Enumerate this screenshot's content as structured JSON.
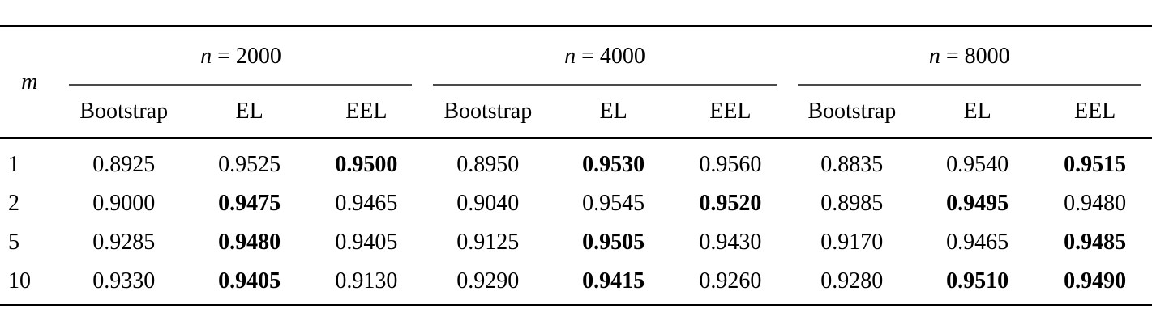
{
  "table": {
    "corner_label": "m",
    "groups": [
      {
        "var": "n",
        "eq": "= 2000",
        "sub_columns": [
          "Bootstrap",
          "EL",
          "EEL"
        ]
      },
      {
        "var": "n",
        "eq": "= 4000",
        "sub_columns": [
          "Bootstrap",
          "EL",
          "EEL"
        ]
      },
      {
        "var": "n",
        "eq": "= 8000",
        "sub_columns": [
          "Bootstrap",
          "EL",
          "EEL"
        ]
      }
    ],
    "rows": [
      {
        "m": "1",
        "cells": [
          {
            "value": "0.8925",
            "bold": false
          },
          {
            "value": "0.9525",
            "bold": false
          },
          {
            "value": "0.9500",
            "bold": true
          },
          {
            "value": "0.8950",
            "bold": false
          },
          {
            "value": "0.9530",
            "bold": true
          },
          {
            "value": "0.9560",
            "bold": false
          },
          {
            "value": "0.8835",
            "bold": false
          },
          {
            "value": "0.9540",
            "bold": false
          },
          {
            "value": "0.9515",
            "bold": true
          }
        ]
      },
      {
        "m": "2",
        "cells": [
          {
            "value": "0.9000",
            "bold": false
          },
          {
            "value": "0.9475",
            "bold": true
          },
          {
            "value": "0.9465",
            "bold": false
          },
          {
            "value": "0.9040",
            "bold": false
          },
          {
            "value": "0.9545",
            "bold": false
          },
          {
            "value": "0.9520",
            "bold": true
          },
          {
            "value": "0.8985",
            "bold": false
          },
          {
            "value": "0.9495",
            "bold": true
          },
          {
            "value": "0.9480",
            "bold": false
          }
        ]
      },
      {
        "m": "5",
        "cells": [
          {
            "value": "0.9285",
            "bold": false
          },
          {
            "value": "0.9480",
            "bold": true
          },
          {
            "value": "0.9405",
            "bold": false
          },
          {
            "value": "0.9125",
            "bold": false
          },
          {
            "value": "0.9505",
            "bold": true
          },
          {
            "value": "0.9430",
            "bold": false
          },
          {
            "value": "0.9170",
            "bold": false
          },
          {
            "value": "0.9465",
            "bold": false
          },
          {
            "value": "0.9485",
            "bold": true
          }
        ]
      },
      {
        "m": "10",
        "cells": [
          {
            "value": "0.9330",
            "bold": false
          },
          {
            "value": "0.9405",
            "bold": true
          },
          {
            "value": "0.9130",
            "bold": false
          },
          {
            "value": "0.9290",
            "bold": false
          },
          {
            "value": "0.9415",
            "bold": true
          },
          {
            "value": "0.9260",
            "bold": false
          },
          {
            "value": "0.9280",
            "bold": false
          },
          {
            "value": "0.9510",
            "bold": true
          },
          {
            "value": "0.9490",
            "bold": true
          }
        ]
      }
    ],
    "colors": {
      "text": "#000000",
      "rule": "#000000",
      "cmidrule": "#4a4a4a",
      "background": "#ffffff"
    }
  }
}
